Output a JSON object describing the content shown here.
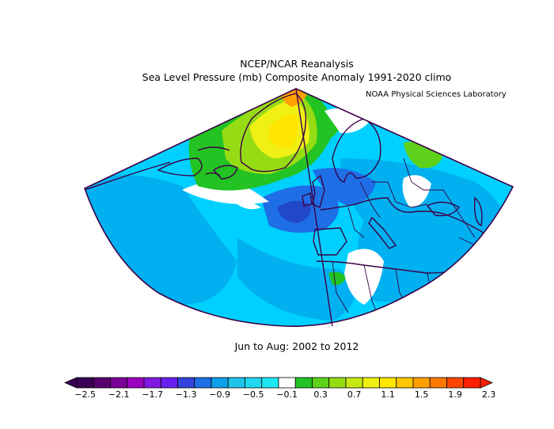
{
  "title": {
    "line1": "NCEP/NCAR Reanalysis",
    "line2": "Sea Level Pressure (mb) Composite Anomaly 1991-2020 climo"
  },
  "credit": "NOAA Physical Sciences Laboratory",
  "period": "Jun to Aug: 2002 to 2012",
  "colorbar": {
    "labels": [
      "-2.5",
      "-2.1",
      "-1.7",
      "-1.3",
      "-0.9",
      "-0.5",
      "-0.1",
      "0.3",
      "0.7",
      "1.1",
      "1.5",
      "1.9",
      "2.3"
    ],
    "colors": [
      "#3a0055",
      "#55006e",
      "#7a0096",
      "#9a00c0",
      "#7f19e0",
      "#6a1ef0",
      "#3344dd",
      "#1e6ee6",
      "#0ea0e8",
      "#1ec4ea",
      "#22d8f0",
      "#1ee8f4",
      "#ffffff",
      "#22c322",
      "#5ed21a",
      "#96dc14",
      "#c8e814",
      "#f0f014",
      "#ffe600",
      "#ffc800",
      "#ffa000",
      "#ff7800",
      "#ff4600",
      "#ff1e00"
    ]
  },
  "palette": {
    "base": "#00d0ff",
    "mid": "#00b0f0",
    "deep": "#1e6ee6",
    "deepest": "#2048c8",
    "white": "#ffffff",
    "green": "#22c322",
    "lightgreen": "#96dc14",
    "yellow": "#f0f014",
    "yellow2": "#ffe600",
    "orange": "#ffa000",
    "coast": "#3a0046"
  }
}
